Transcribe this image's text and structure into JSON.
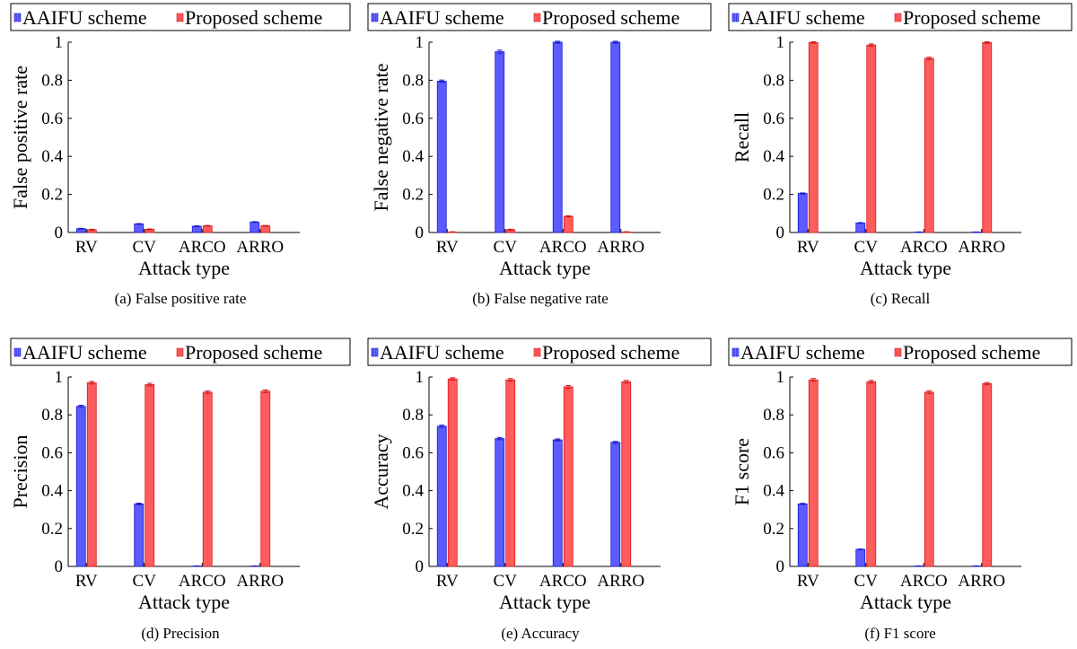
{
  "colors": {
    "aaifu": "#5b5bff",
    "aaifu_edge": "#1a1ad0",
    "proposed": "#ff5c5c",
    "proposed_edge": "#d41a1a"
  },
  "chart_data": [
    {
      "type": "bar",
      "caption": "(a) False positive rate",
      "xlabel": "Attack type",
      "ylabel": "False positive rate",
      "ylim": [
        0,
        1
      ],
      "yticks": [
        "0",
        "0.2",
        "0.4",
        "0.6",
        "0.8",
        "1"
      ],
      "categories": [
        "RV",
        "CV",
        "ARCO",
        "ARRO"
      ],
      "legend": "top, outside",
      "series": [
        {
          "name": "AAIFU scheme",
          "values": [
            0.02,
            0.045,
            0.033,
            0.055
          ],
          "error": [
            0.002,
            0.002,
            0.002,
            0.002
          ]
        },
        {
          "name": "Proposed scheme",
          "values": [
            0.015,
            0.017,
            0.035,
            0.035
          ],
          "error": [
            0.002,
            0.002,
            0.002,
            0.002
          ]
        }
      ]
    },
    {
      "type": "bar",
      "caption": "(b) False negative rate",
      "xlabel": "Attack type",
      "ylabel": "False negative rate",
      "ylim": [
        0,
        1
      ],
      "yticks": [
        "0",
        "0.2",
        "0.4",
        "0.6",
        "0.8",
        "1"
      ],
      "categories": [
        "RV",
        "CV",
        "ARCO",
        "ARRO"
      ],
      "legend": "top, outside",
      "series": [
        {
          "name": "AAIFU scheme",
          "values": [
            0.795,
            0.95,
            1.0,
            1.0
          ],
          "error": [
            0.006,
            0.008,
            0.005,
            0.005
          ]
        },
        {
          "name": "Proposed scheme",
          "values": [
            0.002,
            0.015,
            0.085,
            0.002
          ],
          "error": [
            0.002,
            0.002,
            0.003,
            0.002
          ]
        }
      ]
    },
    {
      "type": "bar",
      "caption": "(c) Recall",
      "xlabel": "Attack type",
      "ylabel": "Recall",
      "ylim": [
        0,
        1
      ],
      "yticks": [
        "0",
        "0.2",
        "0.4",
        "0.6",
        "0.8",
        "1"
      ],
      "categories": [
        "RV",
        "CV",
        "ARCO",
        "ARRO"
      ],
      "legend": "top, outside",
      "series": [
        {
          "name": "AAIFU scheme",
          "values": [
            0.205,
            0.05,
            0.002,
            0.002
          ],
          "error": [
            0.003,
            0.002,
            0.001,
            0.001
          ]
        },
        {
          "name": "Proposed scheme",
          "values": [
            0.998,
            0.985,
            0.915,
            0.998
          ],
          "error": [
            0.004,
            0.006,
            0.006,
            0.004
          ]
        }
      ]
    },
    {
      "type": "bar",
      "caption": "(d) Precision",
      "xlabel": "Attack type",
      "ylabel": "Precision",
      "ylim": [
        0,
        1
      ],
      "yticks": [
        "0",
        "0.2",
        "0.4",
        "0.6",
        "0.8",
        "1"
      ],
      "categories": [
        "RV",
        "CV",
        "ARCO",
        "ARRO"
      ],
      "legend": "top, outside",
      "series": [
        {
          "name": "AAIFU scheme",
          "values": [
            0.845,
            0.33,
            0.002,
            0.002
          ],
          "error": [
            0.006,
            0.004,
            0.001,
            0.001
          ]
        },
        {
          "name": "Proposed scheme",
          "values": [
            0.97,
            0.96,
            0.92,
            0.925
          ],
          "error": [
            0.007,
            0.007,
            0.007,
            0.007
          ]
        }
      ]
    },
    {
      "type": "bar",
      "caption": "(e) Accuracy",
      "xlabel": "Attack type",
      "ylabel": "Accuracy",
      "ylim": [
        0,
        1
      ],
      "yticks": [
        "0",
        "0.2",
        "0.4",
        "0.6",
        "0.8",
        "1"
      ],
      "categories": [
        "RV",
        "CV",
        "ARCO",
        "ARRO"
      ],
      "legend": "top, outside",
      "series": [
        {
          "name": "AAIFU scheme",
          "values": [
            0.74,
            0.675,
            0.668,
            0.655
          ],
          "error": [
            0.006,
            0.006,
            0.005,
            0.005
          ]
        },
        {
          "name": "Proposed scheme",
          "values": [
            0.99,
            0.985,
            0.948,
            0.975
          ],
          "error": [
            0.006,
            0.007,
            0.007,
            0.007
          ]
        }
      ]
    },
    {
      "type": "bar",
      "caption": "(f) F1 score",
      "xlabel": "Attack type",
      "ylabel": "F1 score",
      "ylim": [
        0,
        1
      ],
      "yticks": [
        "0",
        "0.2",
        "0.4",
        "0.6",
        "0.8",
        "1"
      ],
      "categories": [
        "RV",
        "CV",
        "ARCO",
        "ARRO"
      ],
      "legend": "top, outside",
      "series": [
        {
          "name": "AAIFU scheme",
          "values": [
            0.33,
            0.09,
            0.002,
            0.002
          ],
          "error": [
            0.003,
            0.002,
            0.001,
            0.001
          ]
        },
        {
          "name": "Proposed scheme",
          "values": [
            0.985,
            0.975,
            0.92,
            0.965
          ],
          "error": [
            0.007,
            0.007,
            0.007,
            0.006
          ]
        }
      ]
    }
  ]
}
